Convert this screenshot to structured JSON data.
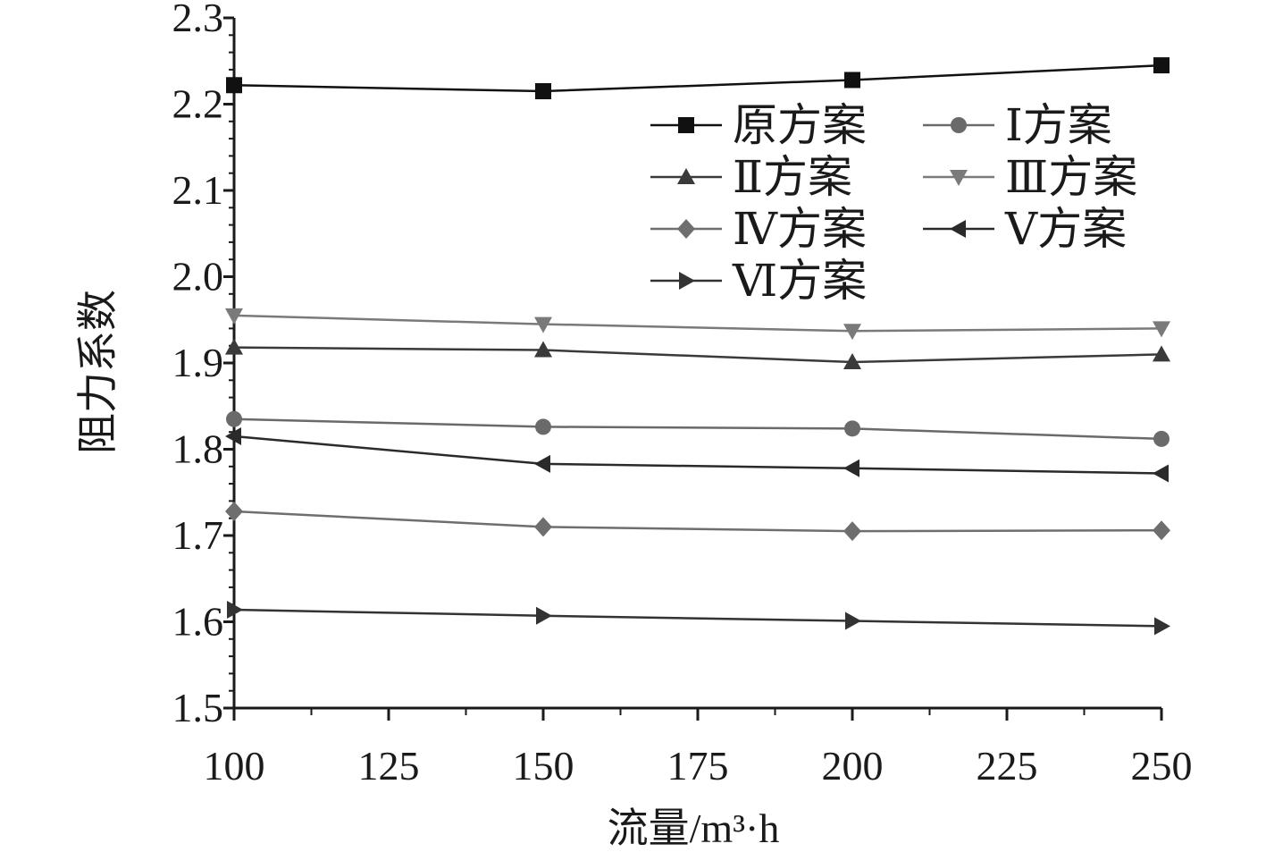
{
  "chart_data": {
    "type": "line",
    "xlabel": "流量/m³·h",
    "ylabel": "阻力系数",
    "xlim": [
      100,
      250
    ],
    "ylim": [
      1.5,
      2.3
    ],
    "x": [
      100,
      150,
      200,
      250
    ],
    "x_ticks": [
      "100",
      "125",
      "150",
      "175",
      "200",
      "225",
      "250"
    ],
    "y_ticks": [
      "1.5",
      "1.6",
      "1.7",
      "1.8",
      "1.9",
      "2.0",
      "2.1",
      "2.2",
      "2.3"
    ],
    "grid": false,
    "legend_position": "top-right",
    "series": [
      {
        "name": "原方案",
        "marker": "square",
        "color": "#111111",
        "values": [
          2.222,
          2.215,
          2.228,
          2.245
        ]
      },
      {
        "name": "Ⅰ方案",
        "marker": "circle",
        "color": "#6a6a6a",
        "values": [
          1.835,
          1.826,
          1.824,
          1.812
        ]
      },
      {
        "name": "Ⅱ方案",
        "marker": "triangle-up",
        "color": "#3a3a3a",
        "values": [
          1.918,
          1.915,
          1.901,
          1.91
        ]
      },
      {
        "name": "Ⅲ方案",
        "marker": "triangle-down",
        "color": "#7a7a7a",
        "values": [
          1.955,
          1.945,
          1.937,
          1.94
        ]
      },
      {
        "name": "Ⅳ方案",
        "marker": "diamond",
        "color": "#6e6e6e",
        "values": [
          1.728,
          1.71,
          1.705,
          1.706
        ]
      },
      {
        "name": "Ⅴ方案",
        "marker": "triangle-left",
        "color": "#2a2a2a",
        "values": [
          1.815,
          1.783,
          1.778,
          1.772
        ]
      },
      {
        "name": "Ⅵ方案",
        "marker": "triangle-right",
        "color": "#333333",
        "values": [
          1.614,
          1.607,
          1.601,
          1.595
        ]
      }
    ]
  }
}
